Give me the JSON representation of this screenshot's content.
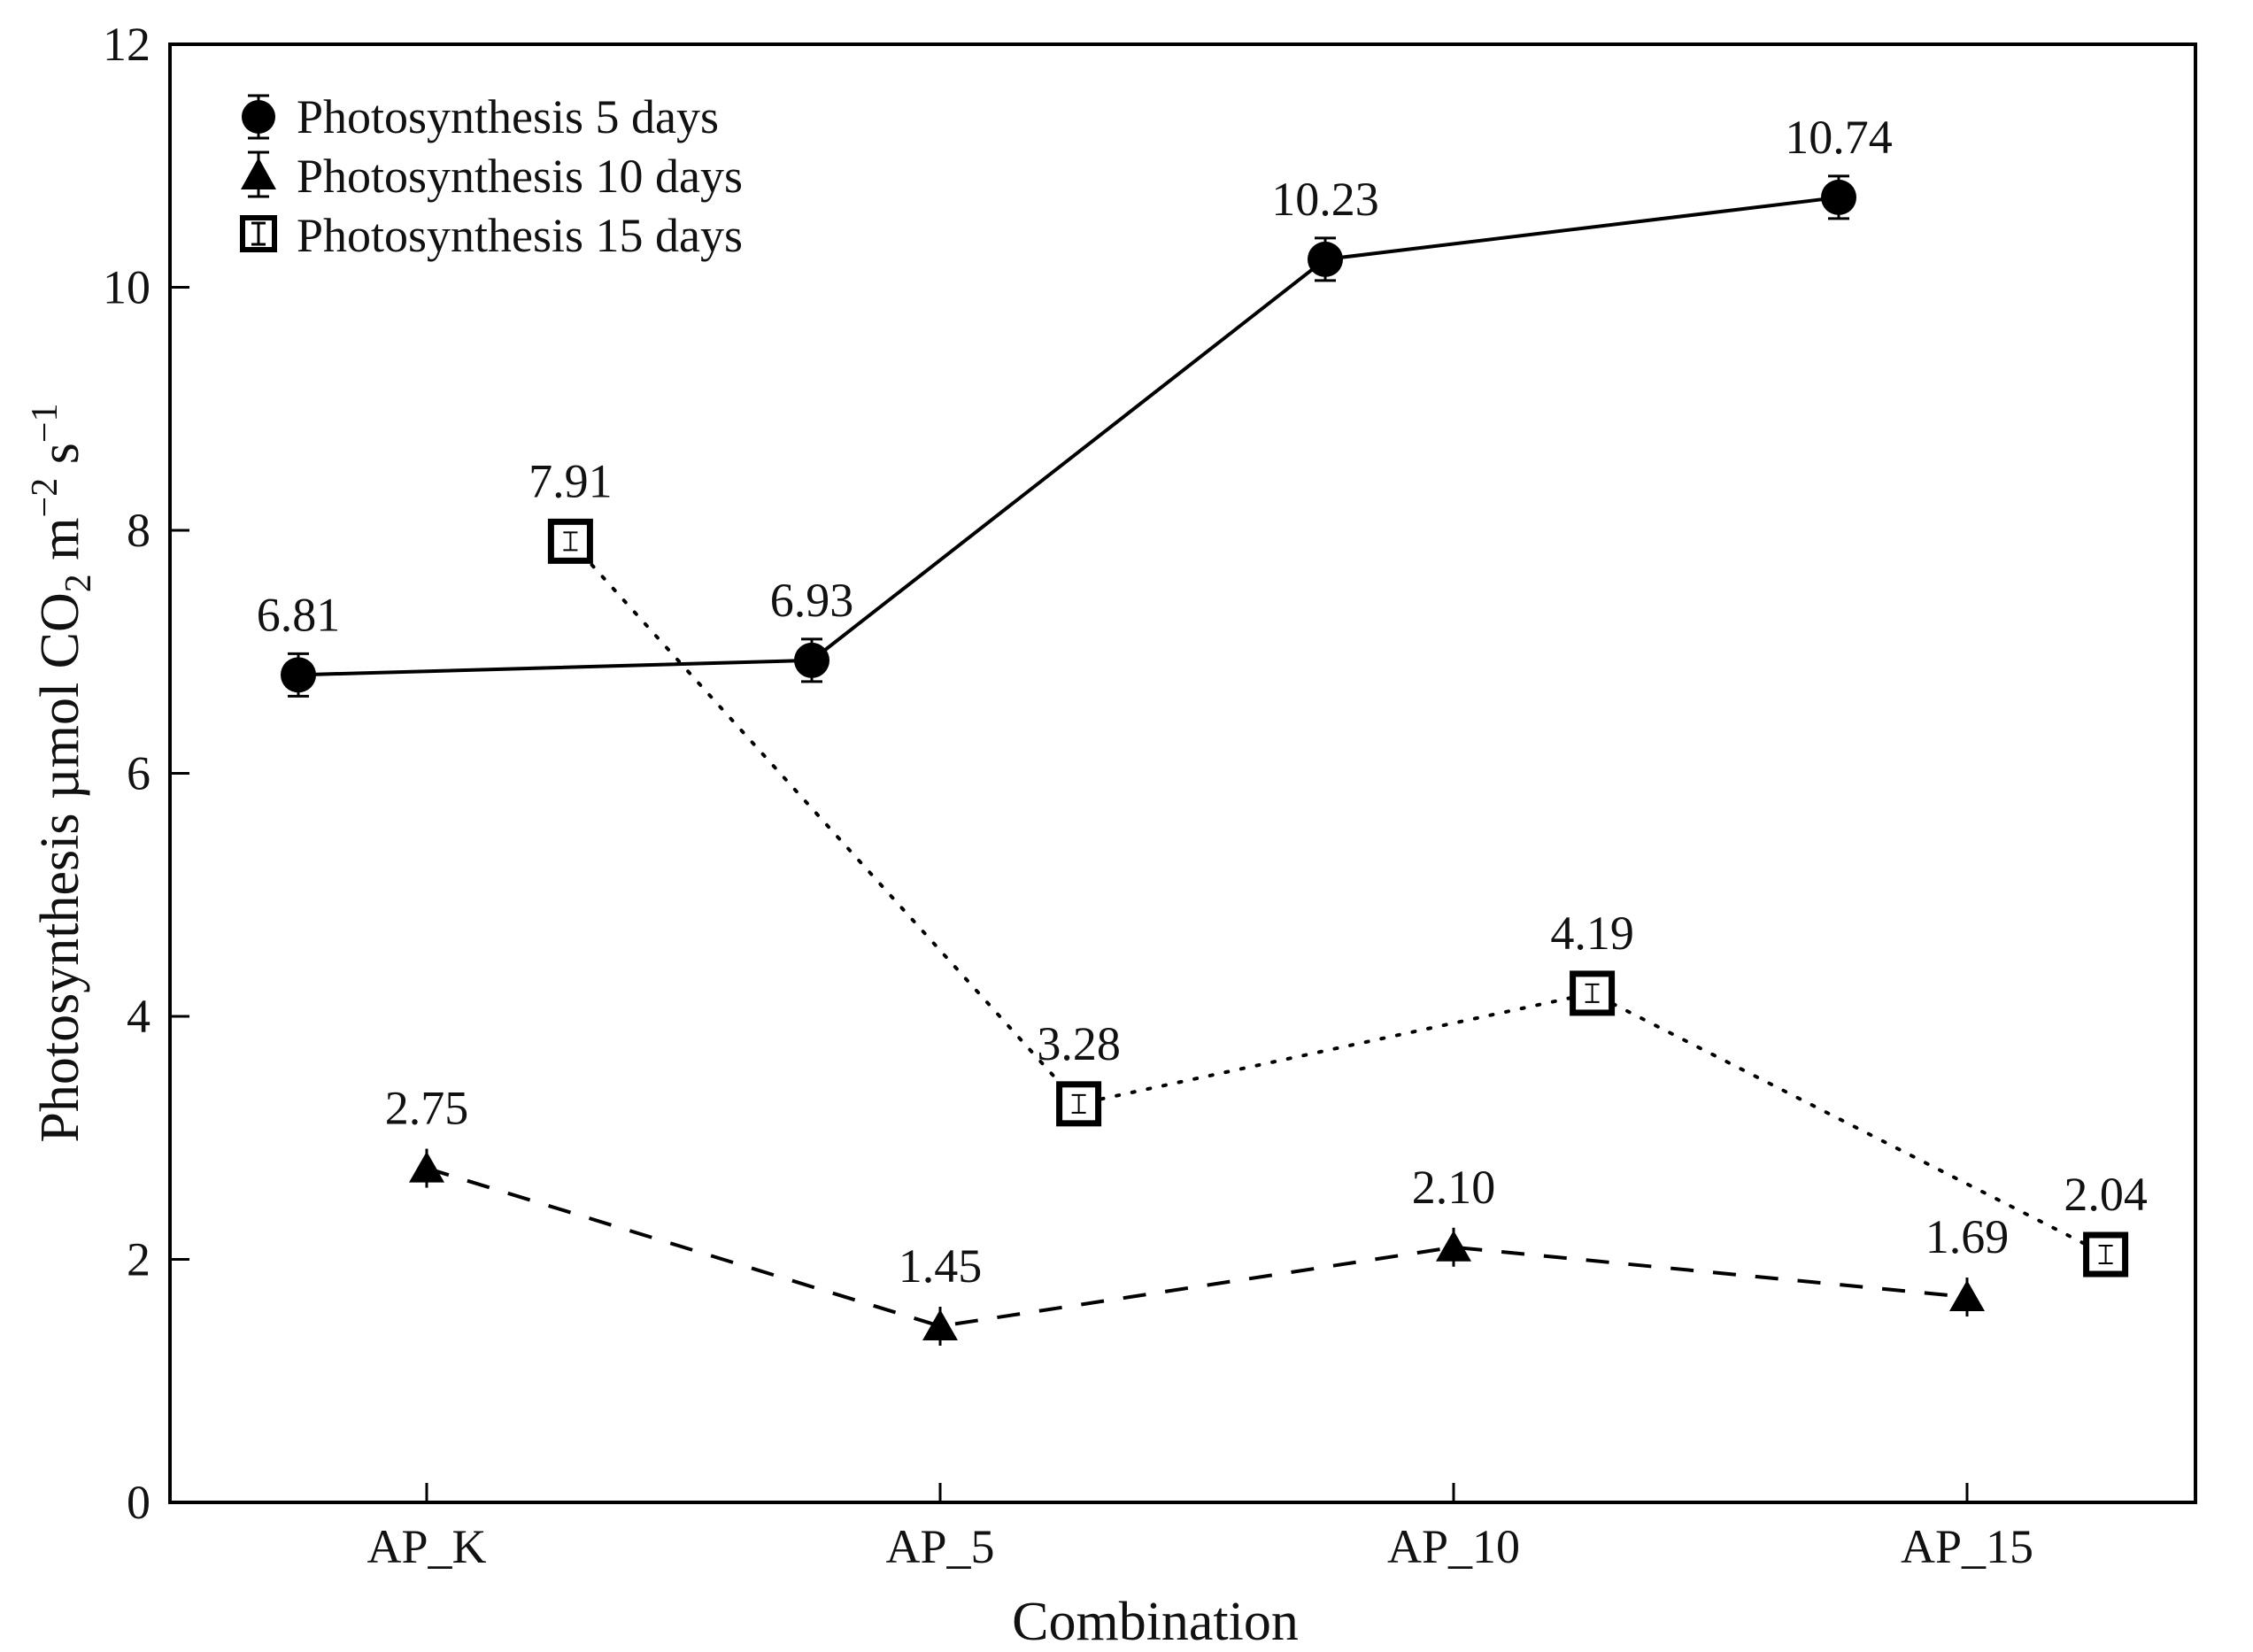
{
  "chart_data": {
    "type": "line",
    "categories": [
      "AP_K",
      "AP_5",
      "AP_10",
      "AP_15"
    ],
    "xlabel": "Combination",
    "ylabel": {
      "main": "Photosynthesis µmol CO",
      "sub": "2",
      "unit1": " m",
      "sup1": "−2",
      "unit2": " s",
      "sup2": "−1"
    },
    "ylim": [
      0,
      12
    ],
    "yticks": [
      0,
      2,
      4,
      6,
      8,
      10,
      12
    ],
    "grid": false,
    "legend_position": "top-left",
    "series": [
      {
        "name": "Photosynthesis 5 days",
        "marker": "circle",
        "line": "solid",
        "x": [
          -0.25,
          0.75,
          1.75,
          2.75
        ],
        "values": [
          6.81,
          6.93,
          10.23,
          10.74
        ],
        "labels": [
          "6.81",
          "6.93",
          "10.23",
          "10.74"
        ]
      },
      {
        "name": "Photosynthesis 10 days",
        "marker": "triangle",
        "line": "dashed",
        "x": [
          0,
          1,
          2,
          3
        ],
        "values": [
          2.75,
          1.45,
          2.1,
          1.69
        ],
        "labels": [
          "2.75",
          "1.45",
          "2.10",
          "1.69"
        ]
      },
      {
        "name": "Photosynthesis 15 days",
        "marker": "square-open",
        "line": "dotted",
        "x": [
          0.28,
          1.27,
          2.27,
          3.27
        ],
        "values": [
          7.91,
          3.28,
          4.19,
          2.04
        ],
        "labels": [
          "7.91",
          "3.28",
          "4.19",
          "2.04"
        ]
      }
    ]
  }
}
